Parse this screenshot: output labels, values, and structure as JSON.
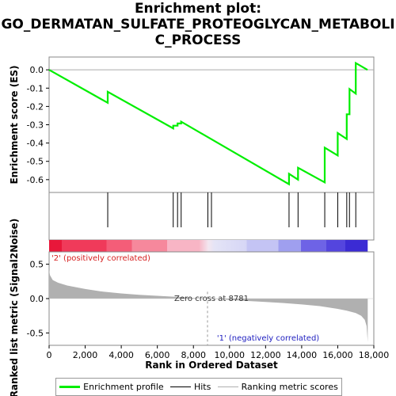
{
  "title_lines": [
    "Enrichment plot:",
    "GO_DERMATAN_SULFATE_PROTEOGLYCAN_METABOLI",
    "C_PROCESS"
  ],
  "colors": {
    "profile": "#00ee00",
    "hits": "#000000",
    "metric": "#b0b0b0",
    "red": "#e8173a",
    "blue": "#3b2bd4"
  },
  "legend": [
    {
      "label": "Enrichment profile",
      "color": "#00ee00",
      "style": "thick"
    },
    {
      "label": "Hits",
      "color": "#000000",
      "style": "thin"
    },
    {
      "label": "Ranking metric scores",
      "color": "#b0b0b0",
      "style": "thin"
    }
  ],
  "chart_data": [
    {
      "type": "line",
      "name": "enrichment_profile",
      "ylabel": "Enrichment score (ES)",
      "xlim": [
        0,
        18000
      ],
      "ylim": [
        -0.67,
        0.07
      ],
      "yticks": [
        "0.0",
        "-0.1",
        "-0.2",
        "-0.3",
        "-0.4",
        "-0.5",
        "-0.6"
      ],
      "grid": false,
      "x": [
        0,
        3250,
        3250,
        6880,
        6880,
        7120,
        7120,
        7320,
        7320,
        13300,
        13300,
        13800,
        13800,
        15280,
        15280,
        16000,
        16000,
        16500,
        16500,
        16650,
        16650,
        17000,
        17000,
        17650
      ],
      "y": [
        0.0,
        -0.18,
        -0.12,
        -0.32,
        -0.305,
        -0.305,
        -0.293,
        -0.293,
        -0.283,
        -0.625,
        -0.568,
        -0.6,
        -0.535,
        -0.615,
        -0.425,
        -0.468,
        -0.345,
        -0.378,
        -0.243,
        -0.243,
        -0.105,
        -0.13,
        0.037,
        0.0
      ]
    },
    {
      "type": "hits",
      "name": "hits",
      "positions": [
        3250,
        6880,
        7120,
        7320,
        8800,
        9000,
        13300,
        13800,
        15280,
        16000,
        16500,
        16650,
        17000
      ]
    },
    {
      "type": "area",
      "name": "ranked_list_metric",
      "ylabel": "Ranked list metric (Signal2Noise)",
      "xlabel": "Rank in Ordered Dataset",
      "xlim": [
        0,
        18000
      ],
      "ylim": [
        -0.68,
        0.68
      ],
      "xticks": [
        "0",
        "2,000",
        "4,000",
        "6,000",
        "8,000",
        "10,000",
        "12,000",
        "14,000",
        "16,000",
        "18,000"
      ],
      "yticks": [
        "0.5",
        "0.0",
        "-0.5"
      ],
      "x": [
        0,
        50,
        200,
        500,
        1000,
        2000,
        3000,
        4000,
        5000,
        6000,
        7000,
        8000,
        8781,
        9500,
        10000,
        11000,
        12000,
        13000,
        14000,
        15000,
        15500,
        16000,
        16500,
        17000,
        17300,
        17500,
        17600,
        17660
      ],
      "y": [
        0.42,
        0.34,
        0.27,
        0.23,
        0.19,
        0.14,
        0.1,
        0.075,
        0.055,
        0.04,
        0.025,
        0.01,
        0.0,
        -0.01,
        -0.02,
        -0.035,
        -0.05,
        -0.065,
        -0.085,
        -0.11,
        -0.13,
        -0.15,
        -0.175,
        -0.21,
        -0.25,
        -0.31,
        -0.4,
        -0.63
      ],
      "zero_cross": 8781,
      "annotations": {
        "zero_cross": "Zero cross at 8781",
        "positive": "'2' (positively correlated)",
        "negative": "'1' (negatively correlated)"
      }
    }
  ]
}
